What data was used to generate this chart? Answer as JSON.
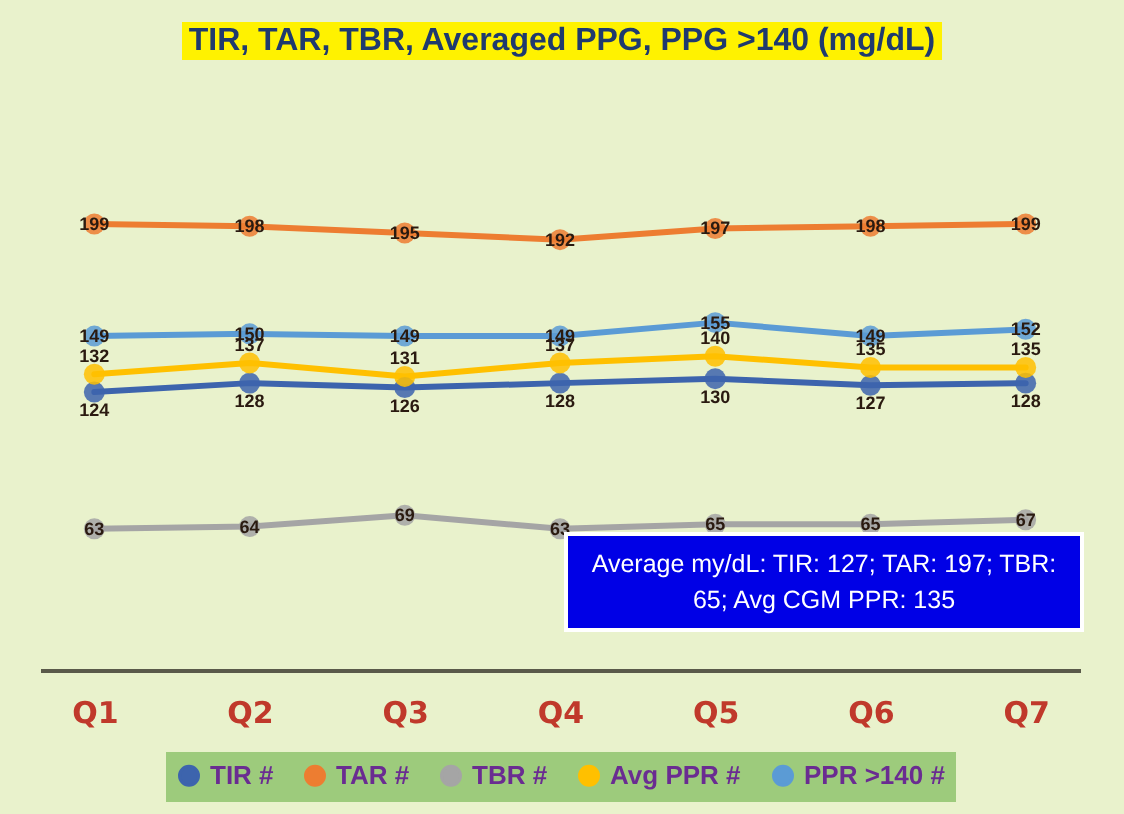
{
  "chart_data": {
    "type": "line",
    "title": "TIR, TAR, TBR, Averaged PPG, PPG >140 (mg/dL)",
    "categories": [
      "Q1",
      "Q2",
      "Q3",
      "Q4",
      "Q5",
      "Q6",
      "Q7"
    ],
    "series": [
      {
        "name": "TIR #",
        "color": "#3d64ad",
        "values": [
          124,
          128,
          126,
          128,
          130,
          127,
          128
        ]
      },
      {
        "name": "TAR #",
        "color": "#ed7d31",
        "values": [
          199,
          198,
          195,
          192,
          197,
          198,
          199
        ]
      },
      {
        "name": "TBR #",
        "color": "#a5a5a5",
        "values": [
          63,
          64,
          69,
          63,
          65,
          65,
          67
        ]
      },
      {
        "name": "Avg PPR #",
        "color": "#ffc000",
        "values": [
          132,
          137,
          131,
          137,
          140,
          135,
          135
        ]
      },
      {
        "name": "PPR >140 #",
        "color": "#5b9bd5",
        "values": [
          149,
          150,
          149,
          149,
          155,
          149,
          152
        ]
      }
    ],
    "tick_labels": "x",
    "legend": "bottom",
    "marker": "circle",
    "line_style": "solid",
    "data_labels": true,
    "annotations": [
      "Average my/dL:  TIR: 127;  TAR: 197; TBR: 65; Avg CGM PPR: 135"
    ]
  }
}
